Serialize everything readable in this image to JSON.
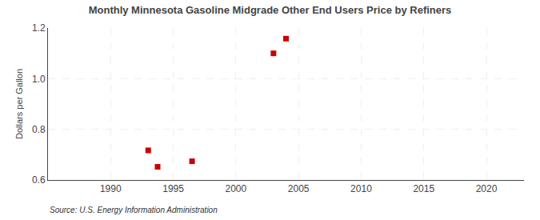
{
  "chart_data": {
    "type": "scatter",
    "title": "Monthly Minnesota Gasoline Midgrade Other End Users Price by Refiners",
    "ylabel": "Dollars per Gallon",
    "annotations": [
      "Source: U.S. Energy Information Administration"
    ],
    "x": [
      1993.0,
      1993.75,
      1996.5,
      2003.0,
      2004.0
    ],
    "values": [
      0.717,
      0.652,
      0.674,
      1.1,
      1.158
    ],
    "color": "#cc0000",
    "marker": "square",
    "xlim": [
      1985,
      2023
    ],
    "ylim": [
      0.6,
      1.2
    ],
    "xticks": [
      1990,
      1995,
      2000,
      2005,
      2010,
      2015,
      2020
    ],
    "yticks": [
      0.6,
      0.8,
      {
        "value": 1,
        "label": "1.0"
      },
      1.2
    ],
    "grid": true
  }
}
